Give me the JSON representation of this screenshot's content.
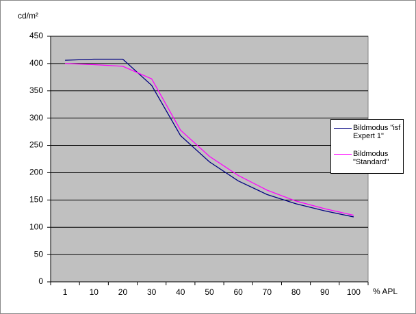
{
  "chart_data": {
    "type": "line",
    "y_label": "cd/m²",
    "x_label": "% APL",
    "categories": [
      "1",
      "10",
      "20",
      "30",
      "40",
      "50",
      "60",
      "70",
      "80",
      "90",
      "100"
    ],
    "series": [
      {
        "name": "Bildmodus \"isf Expert 1\"",
        "color": "#000080",
        "values": [
          406,
          408,
          408,
          360,
          268,
          220,
          185,
          160,
          143,
          130,
          119
        ]
      },
      {
        "name": "Bildmodus \"Standard\"",
        "color": "#ff00ff",
        "values": [
          400,
          398,
          395,
          372,
          278,
          230,
          195,
          168,
          148,
          134,
          122
        ]
      }
    ],
    "ylim": [
      0,
      450
    ],
    "yticks": [
      0,
      50,
      100,
      150,
      200,
      250,
      300,
      350,
      400,
      450
    ],
    "grid": true,
    "legend": "right"
  }
}
